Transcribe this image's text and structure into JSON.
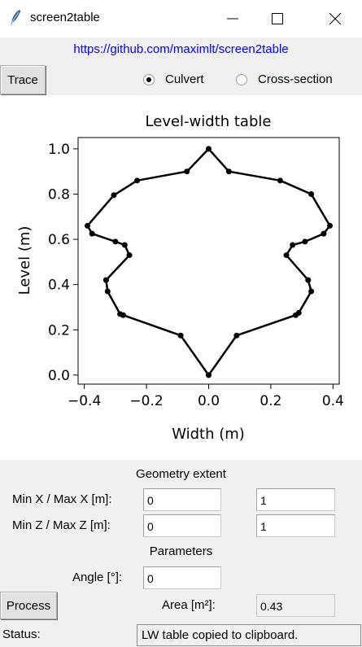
{
  "window": {
    "title": "screen2table",
    "minimize_icon": "minimize-icon",
    "maximize_icon": "maximize-icon",
    "close_icon": "close-icon",
    "app_icon": "feather-icon"
  },
  "header": {
    "link": "https://github.com/maximlt/screen2table",
    "trace_label": "Trace",
    "mode_options": [
      {
        "label": "Culvert",
        "selected": true
      },
      {
        "label": "Cross-section",
        "selected": false
      }
    ]
  },
  "chart_data": {
    "type": "line",
    "title": "Level-width table",
    "xlabel": "Width (m)",
    "ylabel": "Level (m)",
    "xlim": [
      -0.42,
      0.42
    ],
    "ylim": [
      -0.04,
      1.05
    ],
    "xticks": [
      -0.4,
      -0.2,
      0.0,
      0.2,
      0.4
    ],
    "xtick_labels": [
      "−0.4",
      "−0.2",
      "0.0",
      "0.2",
      "0.4"
    ],
    "yticks": [
      0.0,
      0.2,
      0.4,
      0.6,
      0.8,
      1.0
    ],
    "ytick_labels": [
      "0.0",
      "0.2",
      "0.4",
      "0.6",
      "0.8",
      "1.0"
    ],
    "series": [
      {
        "color": "#000000",
        "x": [
          0.0,
          0.09,
          0.28,
          0.29,
          0.33,
          0.32,
          0.25,
          0.27,
          0.31,
          0.37,
          0.39,
          0.33,
          0.23,
          0.065,
          0.0,
          -0.07,
          -0.23,
          -0.305,
          -0.39,
          -0.375,
          -0.3,
          -0.27,
          -0.255,
          -0.33,
          -0.325,
          -0.285,
          -0.275,
          -0.09,
          0.0
        ],
        "y": [
          0.0,
          0.175,
          0.265,
          0.275,
          0.37,
          0.42,
          0.53,
          0.575,
          0.59,
          0.625,
          0.66,
          0.8,
          0.86,
          0.9,
          1.0,
          0.9,
          0.86,
          0.795,
          0.66,
          0.625,
          0.59,
          0.575,
          0.53,
          0.42,
          0.37,
          0.27,
          0.265,
          0.175,
          0.0
        ]
      }
    ]
  },
  "geometry": {
    "heading": "Geometry extent",
    "x_label": "Min X / Max X [m]:",
    "z_label": "Min Z / Max Z [m]:",
    "min_x": "0",
    "max_x": "1",
    "min_z": "0",
    "max_z": "1"
  },
  "parameters": {
    "heading": "Parameters",
    "angle_label": "Angle [°]:",
    "angle": "0"
  },
  "process": {
    "button_label": "Process",
    "area_label": "Area [m²]:",
    "area_value": "0.43"
  },
  "status": {
    "label": "Status:",
    "message": "LW table copied to clipboard."
  }
}
